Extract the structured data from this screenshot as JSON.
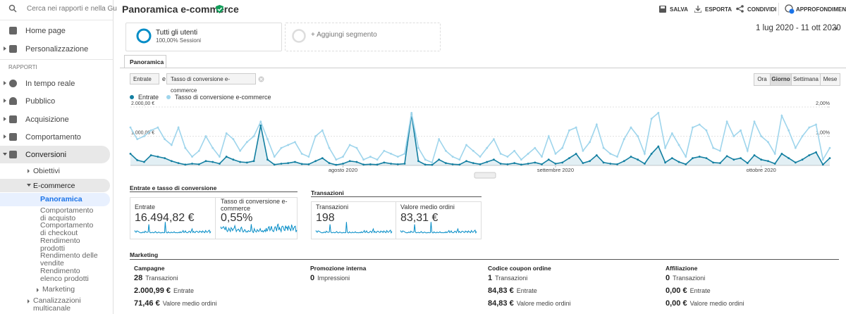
{
  "sidebar": {
    "search_placeholder": "Cerca nei rapporti e nella Gu",
    "items": [
      "Home page",
      "Personalizzazione"
    ],
    "section": "RAPPORTI",
    "reports": [
      "In tempo reale",
      "Pubblico",
      "Acquisizione",
      "Comportamento",
      "Conversioni"
    ],
    "conversions": [
      "Obiettivi",
      "E-commerce"
    ],
    "ecommerce": [
      "Panoramica",
      "Comportamento di acquisto",
      "Comportamento di checkout",
      "Rendimento prodotti",
      "Rendimento delle vendite",
      "Rendimento elenco prodotti",
      "Marketing"
    ],
    "multichannel": "Canalizzazioni multicanale"
  },
  "header": {
    "title": "Panoramica e-commerce",
    "actions": [
      "SALVA",
      "ESPORTA",
      "CONDIVIDI",
      "APPROFONDIMENTI"
    ]
  },
  "segments": [
    {
      "name": "Tutti gli utenti",
      "detail": "100,00% Sessioni"
    },
    {
      "name": "+ Aggiungi segmento"
    }
  ],
  "date_range": "1 lug 2020 - 11 ott 2020",
  "tab": "Panoramica",
  "controls": {
    "metric1": "Entrate",
    "conjunction": "e",
    "metric2": "Tasso di conversione e-commerce",
    "granularity": [
      "Ora",
      "Giorno",
      "Settimana",
      "Mese"
    ],
    "active_granularity": "Giorno"
  },
  "chart_data": {
    "type": "line",
    "series": [
      {
        "name": "Entrate",
        "color": "#137fa1",
        "axis": "y",
        "values": [
          400,
          180,
          120,
          350,
          300,
          250,
          150,
          80,
          30,
          60,
          40,
          150,
          120,
          60,
          300,
          200,
          120,
          100,
          150,
          1370,
          200,
          30,
          60,
          80,
          120,
          50,
          40,
          150,
          250,
          80,
          20,
          60,
          150,
          120,
          30,
          40,
          30,
          100,
          60,
          40,
          60,
          1750,
          150,
          30,
          20,
          200,
          80,
          40,
          30,
          150,
          80,
          40,
          120,
          200,
          60,
          40,
          80,
          30,
          60,
          100,
          40,
          200,
          60,
          100,
          250,
          400,
          80,
          150,
          350,
          100,
          60,
          40,
          150,
          300,
          200,
          60,
          400,
          650,
          100,
          250,
          120,
          40,
          250,
          300,
          250,
          100,
          80,
          320,
          200,
          250,
          80,
          350,
          200,
          150,
          60,
          400,
          250,
          100,
          200,
          350,
          450,
          30,
          250
        ]
      },
      {
        "name": "Tasso di conversione e-commerce",
        "color": "#9fd5ec",
        "axis": "y2",
        "values": [
          1.3,
          0.9,
          1.0,
          1.2,
          1.3,
          0.9,
          0.7,
          1.3,
          0.6,
          0.3,
          0.5,
          1.0,
          0.6,
          0.3,
          1.1,
          0.9,
          0.5,
          0.8,
          1.0,
          1.5,
          0.9,
          0.3,
          0.6,
          0.7,
          0.8,
          0.4,
          0.3,
          1.0,
          1.2,
          0.6,
          0.2,
          0.3,
          0.7,
          0.6,
          0.2,
          0.3,
          0.2,
          0.5,
          0.4,
          0.3,
          0.4,
          1.8,
          0.6,
          0.2,
          0.1,
          0.9,
          0.5,
          0.3,
          0.2,
          0.7,
          0.5,
          0.3,
          0.6,
          0.9,
          0.4,
          0.3,
          0.5,
          0.2,
          0.4,
          0.6,
          0.3,
          1.0,
          0.4,
          0.6,
          1.2,
          1.3,
          0.5,
          0.8,
          1.4,
          0.6,
          0.4,
          0.3,
          0.9,
          1.3,
          1.0,
          0.4,
          1.6,
          1.8,
          0.6,
          1.1,
          0.7,
          0.3,
          1.3,
          1.4,
          1.2,
          0.6,
          0.5,
          1.5,
          1.0,
          1.2,
          0.5,
          1.5,
          1.0,
          0.8,
          0.4,
          1.7,
          1.2,
          0.6,
          1.0,
          1.3,
          1.4,
          0.2,
          0.6
        ]
      }
    ],
    "ylim": [
      0,
      2000
    ],
    "yticks": [
      {
        "value": 1000,
        "label": "1.000,00 €"
      },
      {
        "value": 2000,
        "label": "2.000,00 €"
      }
    ],
    "y2lim": [
      0,
      2
    ],
    "y2ticks": [
      {
        "value": 1,
        "label": "1,00%"
      },
      {
        "value": 2,
        "label": "2,00%"
      }
    ],
    "xticks": [
      {
        "value": 31,
        "label": "agosto 2020"
      },
      {
        "value": 62,
        "label": "settembre 2020"
      },
      {
        "value": 92,
        "label": "ottobre 2020"
      }
    ],
    "grid": true
  },
  "summary": [
    {
      "title": "Entrate e tasso di conversione",
      "metrics": [
        {
          "label": "Entrate",
          "value": "16.494,82 €"
        },
        {
          "label": "Tasso di conversione e-commerce",
          "value": "0,55%"
        }
      ]
    },
    {
      "title": "Transazioni",
      "metrics": [
        {
          "label": "Transazioni",
          "value": "198"
        },
        {
          "label": "Valore medio ordini",
          "value": "83,31 €"
        }
      ]
    }
  ],
  "marketing": {
    "title": "Marketing",
    "columns": [
      {
        "title": "Campagne",
        "rows": [
          {
            "value": "28",
            "label": "Transazioni"
          },
          {
            "value": "2.000,99 €",
            "label": "Entrate"
          },
          {
            "value": "71,46 €",
            "label": "Valore medio ordini"
          }
        ]
      },
      {
        "title": "Promozione interna",
        "rows": [
          {
            "value": "0",
            "label": "Impressioni"
          }
        ]
      },
      {
        "title": "Codice coupon ordine",
        "rows": [
          {
            "value": "1",
            "label": "Transazioni"
          },
          {
            "value": "84,83 €",
            "label": "Entrate"
          },
          {
            "value": "84,83 €",
            "label": "Valore medio ordini"
          }
        ]
      },
      {
        "title": "Affiliazione",
        "rows": [
          {
            "value": "0",
            "label": "Transazioni"
          },
          {
            "value": "0,00 €",
            "label": "Entrate"
          },
          {
            "value": "0,00 €",
            "label": "Valore medio ordini"
          }
        ]
      }
    ]
  }
}
